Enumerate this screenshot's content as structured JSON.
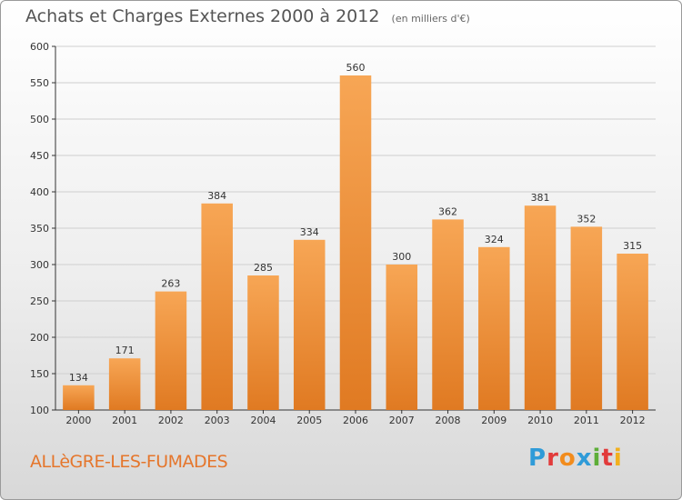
{
  "header": {
    "title": "Achats et Charges Externes 2000 à 2012",
    "subtitle": "(en milliers d'€)"
  },
  "footer": {
    "town": "ALLèGRE-LES-FUMADES",
    "logo_text": "Proxiti"
  },
  "colors": {
    "bar_top": "#f7a655",
    "bar_bottom": "#e07a22",
    "grid": "#cfcfcf",
    "axis": "#333333"
  },
  "chart_data": {
    "type": "bar",
    "title": "Achats et Charges Externes 2000 à 2012",
    "subtitle": "(en milliers d'€)",
    "categories": [
      "2000",
      "2001",
      "2002",
      "2003",
      "2004",
      "2005",
      "2006",
      "2007",
      "2008",
      "2009",
      "2010",
      "2011",
      "2012"
    ],
    "values": [
      134,
      171,
      263,
      384,
      285,
      334,
      560,
      300,
      362,
      324,
      381,
      352,
      315
    ],
    "ylim": [
      100,
      600
    ],
    "yticks": [
      100,
      150,
      200,
      250,
      300,
      350,
      400,
      450,
      500,
      550,
      600
    ],
    "grid": true
  }
}
